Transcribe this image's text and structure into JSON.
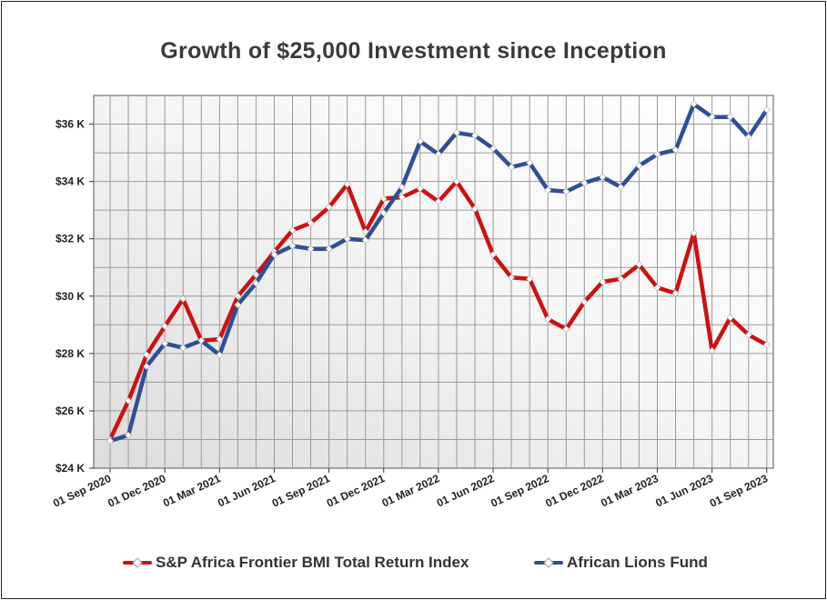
{
  "chart_data": {
    "type": "line",
    "title": "Growth of $25,000 Investment since Inception",
    "xlabel": "",
    "ylabel": "",
    "ylim": [
      24000,
      37000
    ],
    "yticks": [
      24000,
      26000,
      28000,
      30000,
      32000,
      34000,
      36000
    ],
    "ytick_labels": [
      "$24 K",
      "$26 K",
      "$28 K",
      "$30 K",
      "$32 K",
      "$34 K",
      "$36 K"
    ],
    "x_tick_labels": [
      "01 Sep 2020",
      "01 Dec 2020",
      "01 Mar 2021",
      "01 Jun 2021",
      "01 Sep 2021",
      "01 Dec 2021",
      "01 Mar 2022",
      "01 Jun 2022",
      "01 Sep 2022",
      "01 Dec 2022",
      "01 Mar 2023",
      "01 Jun 2023",
      "01 Sep 2023"
    ],
    "x_count": 37,
    "grid": true,
    "legend_position": "bottom",
    "series": [
      {
        "name": "S&P Africa Frontier BMI Total Return Index",
        "color": "#cc1111",
        "values": [
          25000,
          26350,
          27950,
          28950,
          29900,
          28450,
          28500,
          30000,
          30750,
          31550,
          32300,
          32550,
          33100,
          33900,
          32250,
          33400,
          33450,
          33750,
          33300,
          34000,
          33050,
          31450,
          30650,
          30600,
          29200,
          28850,
          29800,
          30500,
          30600,
          31100,
          30300,
          30100,
          32200,
          28100,
          29250,
          28650,
          28300
        ]
      },
      {
        "name": "African Lions Fund",
        "color": "#2e4f94",
        "values": [
          24950,
          25150,
          27550,
          28350,
          28200,
          28450,
          27950,
          29700,
          30450,
          31450,
          31750,
          31650,
          31650,
          32000,
          31950,
          32900,
          33800,
          35400,
          34950,
          35700,
          35600,
          35150,
          34500,
          34650,
          33700,
          33650,
          33950,
          34150,
          33800,
          34550,
          34950,
          35100,
          36700,
          36250,
          36250,
          35550,
          36500
        ]
      }
    ]
  }
}
